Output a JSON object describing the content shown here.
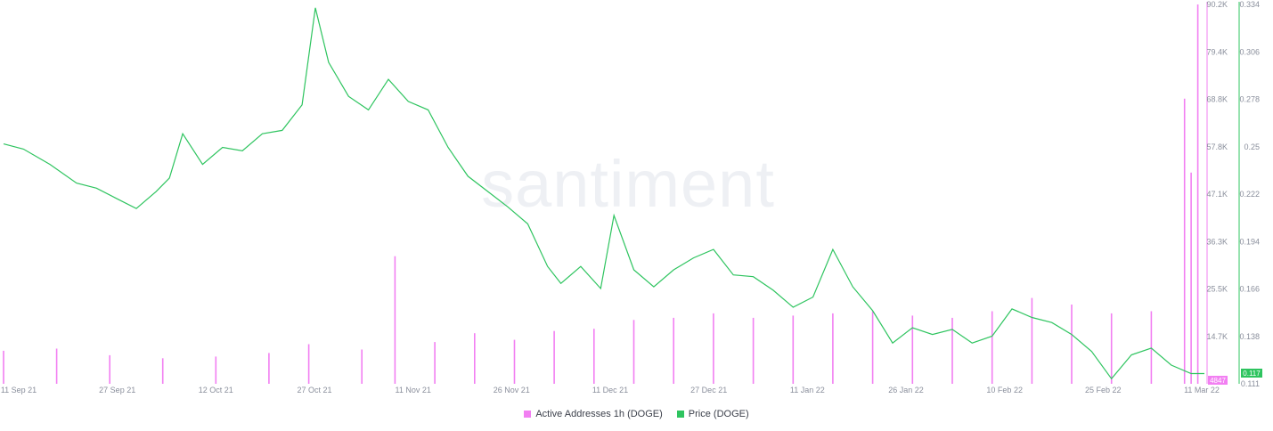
{
  "watermark": "santiment",
  "colors": {
    "active_addresses": "#f27ff2",
    "price": "#2ec45f",
    "axis_text": "#8a8f9c"
  },
  "legend": [
    {
      "label": "Active Addresses 1h (DOGE)",
      "color": "#f27ff2"
    },
    {
      "label": "Price (DOGE)",
      "color": "#2ec45f"
    }
  ],
  "chart_data": {
    "type": "line",
    "x_tick_labels": [
      "11 Sep 21",
      "27 Sep 21",
      "12 Oct 21",
      "27 Oct 21",
      "11 Nov 21",
      "26 Nov 21",
      "11 Dec 21",
      "27 Dec 21",
      "11 Jan 22",
      "26 Jan 22",
      "10 Feb 22",
      "25 Feb 22",
      "11 Mar 22"
    ],
    "x_range": [
      "2021-09-11",
      "2022-03-11"
    ],
    "y_left_ticks": [
      "90.2K",
      "79.4K",
      "68.8K",
      "57.8K",
      "47.1K",
      "36.3K",
      "25.5K",
      "14.7K"
    ],
    "y_left_range": [
      4000,
      90200
    ],
    "y_right_ticks": [
      "0.334",
      "0.306",
      "0.278",
      "0.25",
      "0.222",
      "0.194",
      "0.166",
      "0.138",
      "0.111"
    ],
    "y_right_range": [
      0.111,
      0.334
    ],
    "current_values": {
      "active_addresses": "4847",
      "price": "0.117"
    },
    "series": [
      {
        "name": "Active Addresses 1h (DOGE)",
        "type": "bar",
        "axis": "left",
        "x": [
          "2021-09-11",
          "2021-09-19",
          "2021-09-27",
          "2021-10-05",
          "2021-10-13",
          "2021-10-21",
          "2021-10-27",
          "2021-11-04",
          "2021-11-09",
          "2021-11-15",
          "2021-11-21",
          "2021-11-27",
          "2021-12-03",
          "2021-12-09",
          "2021-12-15",
          "2021-12-21",
          "2021-12-27",
          "2022-01-02",
          "2022-01-08",
          "2022-01-14",
          "2022-01-20",
          "2022-01-26",
          "2022-02-01",
          "2022-02-07",
          "2022-02-13",
          "2022-02-19",
          "2022-02-25",
          "2022-03-03",
          "2022-03-08",
          "2022-03-09",
          "2022-03-10"
        ],
        "values": [
          11500,
          12000,
          10500,
          9800,
          10200,
          11000,
          13000,
          11800,
          33000,
          13500,
          15500,
          14000,
          16000,
          16500,
          18500,
          19000,
          20000,
          19000,
          19500,
          20000,
          20500,
          19500,
          19000,
          20500,
          23500,
          22000,
          20000,
          20500,
          68800,
          52000,
          90200
        ]
      },
      {
        "name": "Price (DOGE)",
        "type": "line",
        "axis": "right",
        "x": [
          "2021-09-11",
          "2021-09-14",
          "2021-09-18",
          "2021-09-22",
          "2021-09-25",
          "2021-09-28",
          "2021-10-01",
          "2021-10-04",
          "2021-10-06",
          "2021-10-08",
          "2021-10-11",
          "2021-10-14",
          "2021-10-17",
          "2021-10-20",
          "2021-10-23",
          "2021-10-26",
          "2021-10-28",
          "2021-10-30",
          "2021-11-02",
          "2021-11-05",
          "2021-11-08",
          "2021-11-11",
          "2021-11-14",
          "2021-11-17",
          "2021-11-20",
          "2021-11-23",
          "2021-11-26",
          "2021-11-29",
          "2021-12-02",
          "2021-12-04",
          "2021-12-07",
          "2021-12-10",
          "2021-12-12",
          "2021-12-15",
          "2021-12-18",
          "2021-12-21",
          "2021-12-24",
          "2021-12-27",
          "2021-12-30",
          "2022-01-02",
          "2022-01-05",
          "2022-01-08",
          "2022-01-11",
          "2022-01-14",
          "2022-01-17",
          "2022-01-20",
          "2022-01-23",
          "2022-01-26",
          "2022-01-29",
          "2022-02-01",
          "2022-02-04",
          "2022-02-07",
          "2022-02-10",
          "2022-02-13",
          "2022-02-16",
          "2022-02-19",
          "2022-02-22",
          "2022-02-25",
          "2022-02-28",
          "2022-03-03",
          "2022-03-06",
          "2022-03-09",
          "2022-03-11"
        ],
        "values": [
          0.252,
          0.249,
          0.24,
          0.229,
          0.226,
          0.22,
          0.214,
          0.224,
          0.232,
          0.258,
          0.24,
          0.25,
          0.248,
          0.258,
          0.26,
          0.275,
          0.332,
          0.3,
          0.28,
          0.272,
          0.29,
          0.277,
          0.272,
          0.25,
          0.233,
          0.224,
          0.215,
          0.205,
          0.18,
          0.17,
          0.18,
          0.167,
          0.21,
          0.178,
          0.168,
          0.178,
          0.185,
          0.19,
          0.175,
          0.174,
          0.166,
          0.156,
          0.162,
          0.19,
          0.168,
          0.154,
          0.135,
          0.144,
          0.14,
          0.143,
          0.135,
          0.139,
          0.155,
          0.15,
          0.147,
          0.14,
          0.13,
          0.114,
          0.128,
          0.132,
          0.122,
          0.117,
          0.117
        ]
      }
    ]
  }
}
